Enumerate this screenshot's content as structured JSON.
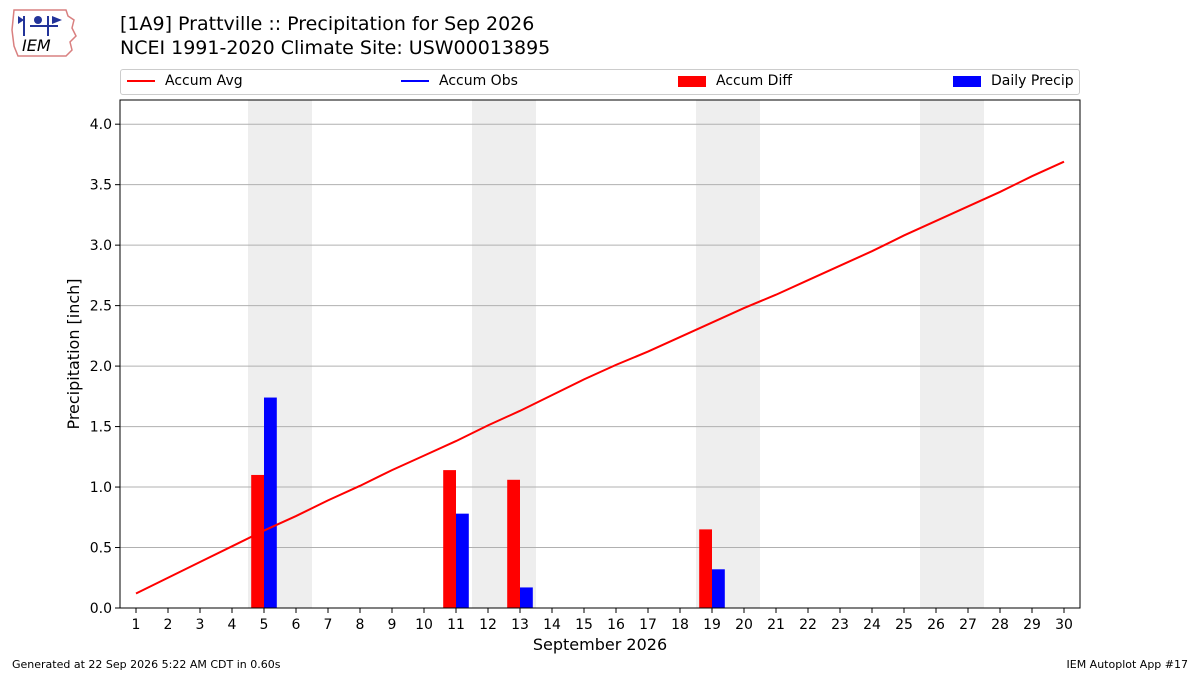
{
  "header": {
    "logo_text": "IEM",
    "title_line1": "[1A9] Prattville :: Precipitation for Sep 2026",
    "title_line2": "NCEI 1991-2020 Climate Site: USW00013895"
  },
  "legend": {
    "items": [
      {
        "label": "Accum Avg",
        "kind": "line",
        "color": "#ff0000"
      },
      {
        "label": "Accum Obs",
        "kind": "line",
        "color": "#0000ff"
      },
      {
        "label": "Accum Diff",
        "kind": "box",
        "color": "#ff0000"
      },
      {
        "label": "Daily Precip",
        "kind": "box",
        "color": "#0000ff"
      }
    ]
  },
  "footer": {
    "left": "Generated at 22 Sep 2026 5:22 AM CDT in 0.60s",
    "right": "IEM Autoplot App #17"
  },
  "chart_data": {
    "type": "bar",
    "title": "[1A9] Prattville :: Precipitation for Sep 2026",
    "subtitle": "NCEI 1991-2020 Climate Site: USW00013895",
    "xlabel": "September 2026",
    "ylabel": "Precipitation [inch]",
    "xlim": [
      0.5,
      30.5
    ],
    "ylim": [
      0,
      4.2
    ],
    "yticks": [
      0.0,
      0.5,
      1.0,
      1.5,
      2.0,
      2.5,
      3.0,
      3.5,
      4.0
    ],
    "ytick_labels": [
      "0.0",
      "0.5",
      "1.0",
      "1.5",
      "2.0",
      "2.5",
      "3.0",
      "3.5",
      "4.0"
    ],
    "days": [
      1,
      2,
      3,
      4,
      5,
      6,
      7,
      8,
      9,
      10,
      11,
      12,
      13,
      14,
      15,
      16,
      17,
      18,
      19,
      20,
      21,
      22,
      23,
      24,
      25,
      26,
      27,
      28,
      29,
      30
    ],
    "grid": "horizontal",
    "weekend_shading": [
      [
        4.5,
        6.5
      ],
      [
        11.5,
        13.5
      ],
      [
        18.5,
        20.5
      ],
      [
        25.5,
        27.5
      ]
    ],
    "weekend_color": "#eeeeee",
    "series": [
      {
        "name": "Accum Avg",
        "type": "line",
        "color": "#ff0000",
        "values": [
          0.12,
          0.25,
          0.38,
          0.51,
          0.64,
          0.76,
          0.89,
          1.01,
          1.14,
          1.26,
          1.38,
          1.51,
          1.63,
          1.76,
          1.89,
          2.01,
          2.12,
          2.24,
          2.36,
          2.48,
          2.59,
          2.71,
          2.83,
          2.95,
          3.08,
          3.2,
          3.32,
          3.44,
          3.57,
          3.69
        ]
      },
      {
        "name": "Accum Diff",
        "type": "bar",
        "color": "#ff0000",
        "points": [
          [
            5,
            1.1
          ],
          [
            11,
            1.14
          ],
          [
            13,
            1.06
          ],
          [
            19,
            0.65
          ]
        ]
      },
      {
        "name": "Daily Precip",
        "type": "bar",
        "color": "#0000ff",
        "points": [
          [
            5,
            1.74
          ],
          [
            11,
            0.78
          ],
          [
            13,
            0.17
          ],
          [
            19,
            0.32
          ]
        ]
      }
    ]
  }
}
